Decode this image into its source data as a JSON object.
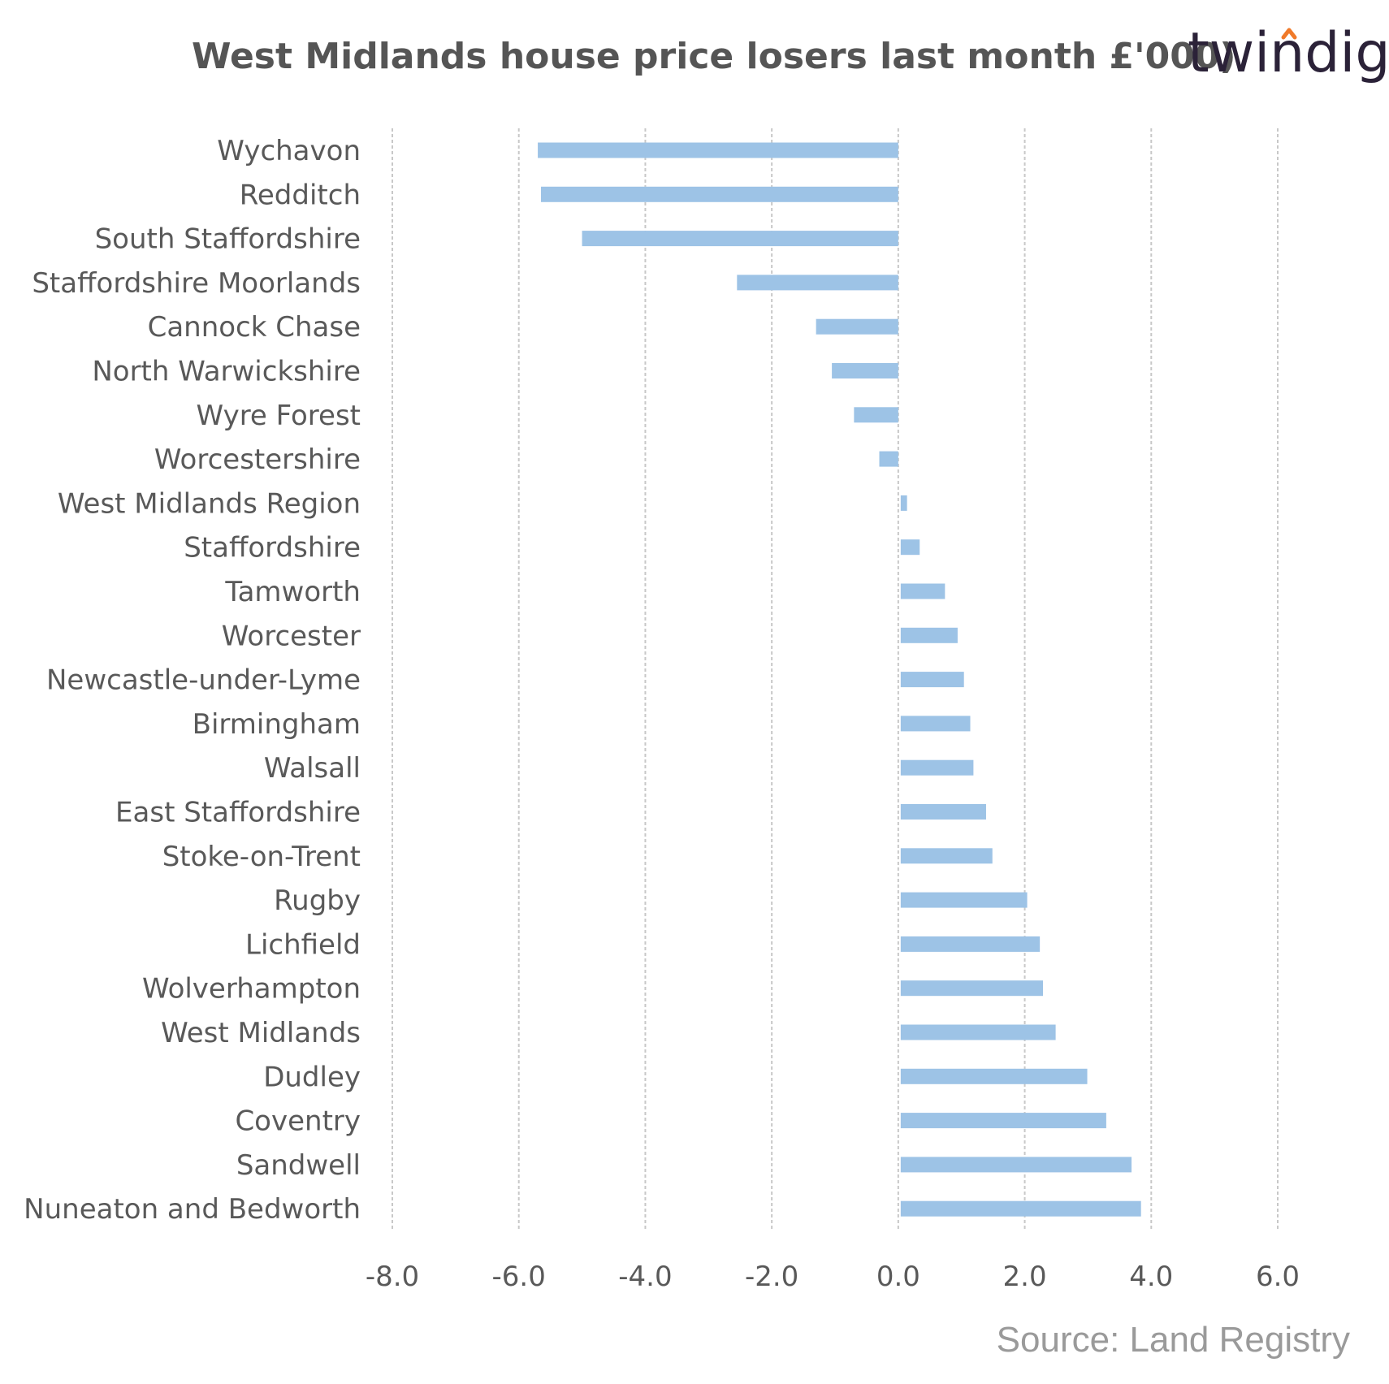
{
  "brand": {
    "logo_text": "twindig",
    "logo_color": "#2b2238",
    "logo_accent": "#f07a2a"
  },
  "footer": {
    "source": "Source: Land Registry"
  },
  "colors": {
    "bar": "#9dc3e6",
    "grid": "#c8c8c8",
    "text": "#595959",
    "title": "#555555",
    "source": "#9a9a9a"
  },
  "chart_data": {
    "type": "bar",
    "orientation": "horizontal",
    "title": "West Midlands  house price losers last month £'000)",
    "xlabel": "",
    "ylabel": "",
    "xlim": [
      -8.0,
      6.0
    ],
    "xticks": [
      -8.0,
      -6.0,
      -4.0,
      -2.0,
      0.0,
      2.0,
      4.0,
      6.0
    ],
    "xtick_labels": [
      "-8.0",
      "-6.0",
      "-4.0",
      "-2.0",
      "0.0",
      "2.0",
      "4.0",
      "6.0"
    ],
    "grid": "vertical, dashed",
    "legend": "none",
    "categories": [
      "Wychavon",
      "Redditch",
      "South Staffordshire",
      "Staffordshire Moorlands",
      "Cannock Chase",
      "North Warwickshire",
      "Wyre Forest",
      "Worcestershire",
      "West Midlands Region",
      "Staffordshire",
      "Tamworth",
      "Worcester",
      "Newcastle-under-Lyme",
      "Birmingham",
      "Walsall",
      "East Staffordshire",
      "Stoke-on-Trent",
      "Rugby",
      "Lichfield",
      "Wolverhampton",
      "West Midlands",
      "Dudley",
      "Coventry",
      "Sandwell",
      "Nuneaton and Bedworth"
    ],
    "values": [
      -5.7,
      -5.65,
      -5.0,
      -2.55,
      -1.3,
      -1.05,
      -0.7,
      -0.3,
      0.1,
      0.3,
      0.7,
      0.9,
      1.0,
      1.1,
      1.15,
      1.35,
      1.45,
      2.0,
      2.2,
      2.25,
      2.45,
      2.95,
      3.25,
      3.65,
      3.8
    ]
  }
}
